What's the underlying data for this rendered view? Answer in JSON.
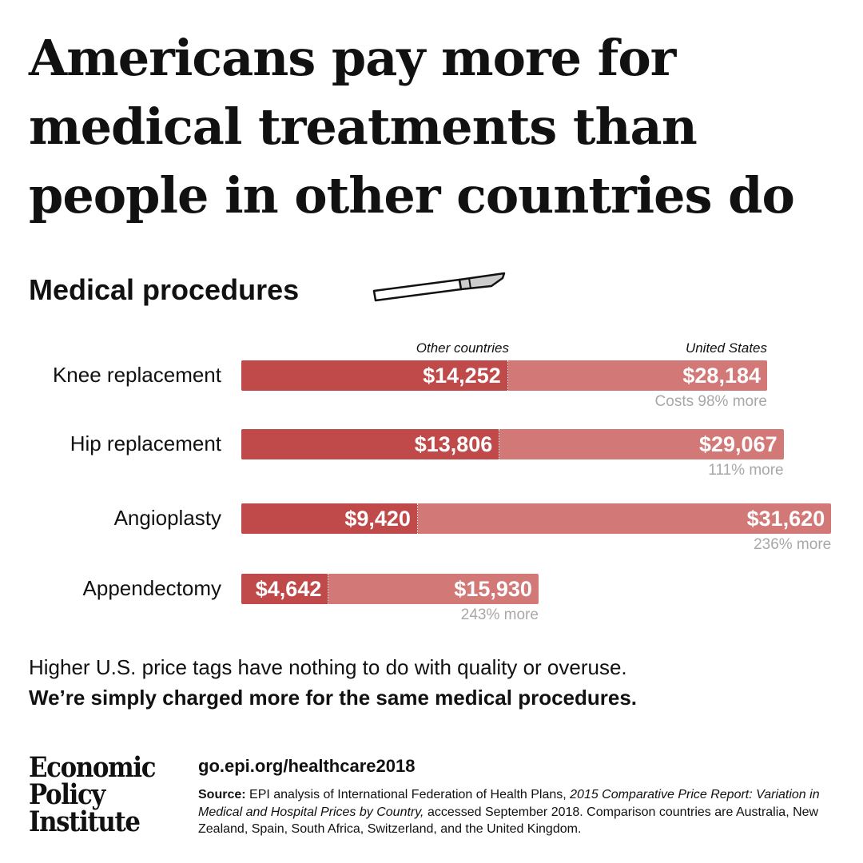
{
  "title": "Americans pay more for medical treatments than people in other countries do",
  "subtitle": "Medical procedures",
  "icon": "scalpel-icon",
  "colors": {
    "other": "#c0494a",
    "us": "#d27877",
    "pct": "#a8a8a8"
  },
  "chart_data": {
    "type": "bar",
    "series_labels": {
      "other": "Other countries",
      "us": "United States"
    },
    "categories": [
      "Knee replacement",
      "Hip replacement",
      "Angioplasty",
      "Appendectomy"
    ],
    "series": [
      {
        "name": "Other countries",
        "values": [
          14252,
          13806,
          9420,
          4642
        ]
      },
      {
        "name": "United States",
        "values": [
          28184,
          29067,
          31620,
          15930
        ]
      }
    ],
    "value_labels": {
      "other": [
        "$14,252",
        "$13,806",
        "$9,420",
        "$4,642"
      ],
      "us": [
        "$28,184",
        "$29,067",
        "$31,620",
        "$15,930"
      ]
    },
    "pct_labels": [
      "Costs 98% more",
      "111% more",
      "236% more",
      "243% more"
    ]
  },
  "note_line1": "Higher U.S. price tags have nothing to do with quality or overuse.",
  "note_line2": "We’re simply charged more for the same medical procedures.",
  "logo": [
    "Economic",
    "Policy",
    "Institute"
  ],
  "url": "go.epi.org/healthcare2018",
  "source": {
    "label": "Source:",
    "text1": " EPI analysis of International Federation of Health Plans, ",
    "italic": "2015 Comparative Price Report: Variation in Medical and Hospital Prices by Country,",
    "text2": " accessed September 2018. Comparison countries are Australia, New Zealand, Spain, South Africa, Switzerland, and the United Kingdom."
  }
}
